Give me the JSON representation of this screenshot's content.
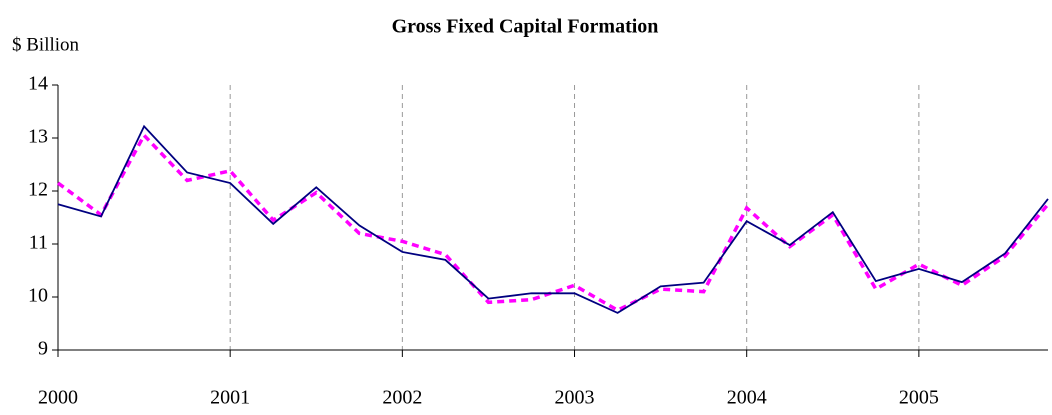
{
  "chart_data": {
    "type": "line",
    "title": "Gross Fixed Capital Formation",
    "y_label": "$ Billion",
    "x": [
      2000,
      2000.25,
      2000.5,
      2000.75,
      2001,
      2001.25,
      2001.5,
      2001.75,
      2002,
      2002.25,
      2002.5,
      2002.75,
      2003,
      2003.25,
      2003.5,
      2003.75,
      2004,
      2004.25,
      2004.5,
      2004.75,
      2005,
      2005.25,
      2005.5,
      2005.75
    ],
    "series": [
      {
        "color": "#000080",
        "dashed": false,
        "values": [
          11.75,
          11.52,
          13.22,
          12.35,
          12.15,
          11.38,
          12.07,
          11.35,
          10.85,
          10.7,
          9.97,
          10.07,
          10.07,
          9.7,
          10.2,
          10.27,
          11.43,
          10.98,
          11.6,
          10.3,
          10.53,
          10.28,
          10.82,
          11.85
        ]
      },
      {
        "color": "#ff00ff",
        "dashed": true,
        "values": [
          12.15,
          11.55,
          13.05,
          12.2,
          12.38,
          11.45,
          11.97,
          11.2,
          11.05,
          10.8,
          9.9,
          9.95,
          10.22,
          9.75,
          10.15,
          10.1,
          11.68,
          10.95,
          11.55,
          10.15,
          10.62,
          10.22,
          10.77,
          11.75
        ]
      }
    ],
    "xlim": [
      2000,
      2005.75
    ],
    "xticks": [
      2000,
      2001,
      2002,
      2003,
      2004,
      2005
    ],
    "ylim": [
      9,
      14
    ],
    "yticks": [
      9,
      10,
      11,
      12,
      13,
      14
    ],
    "grid": "x"
  }
}
